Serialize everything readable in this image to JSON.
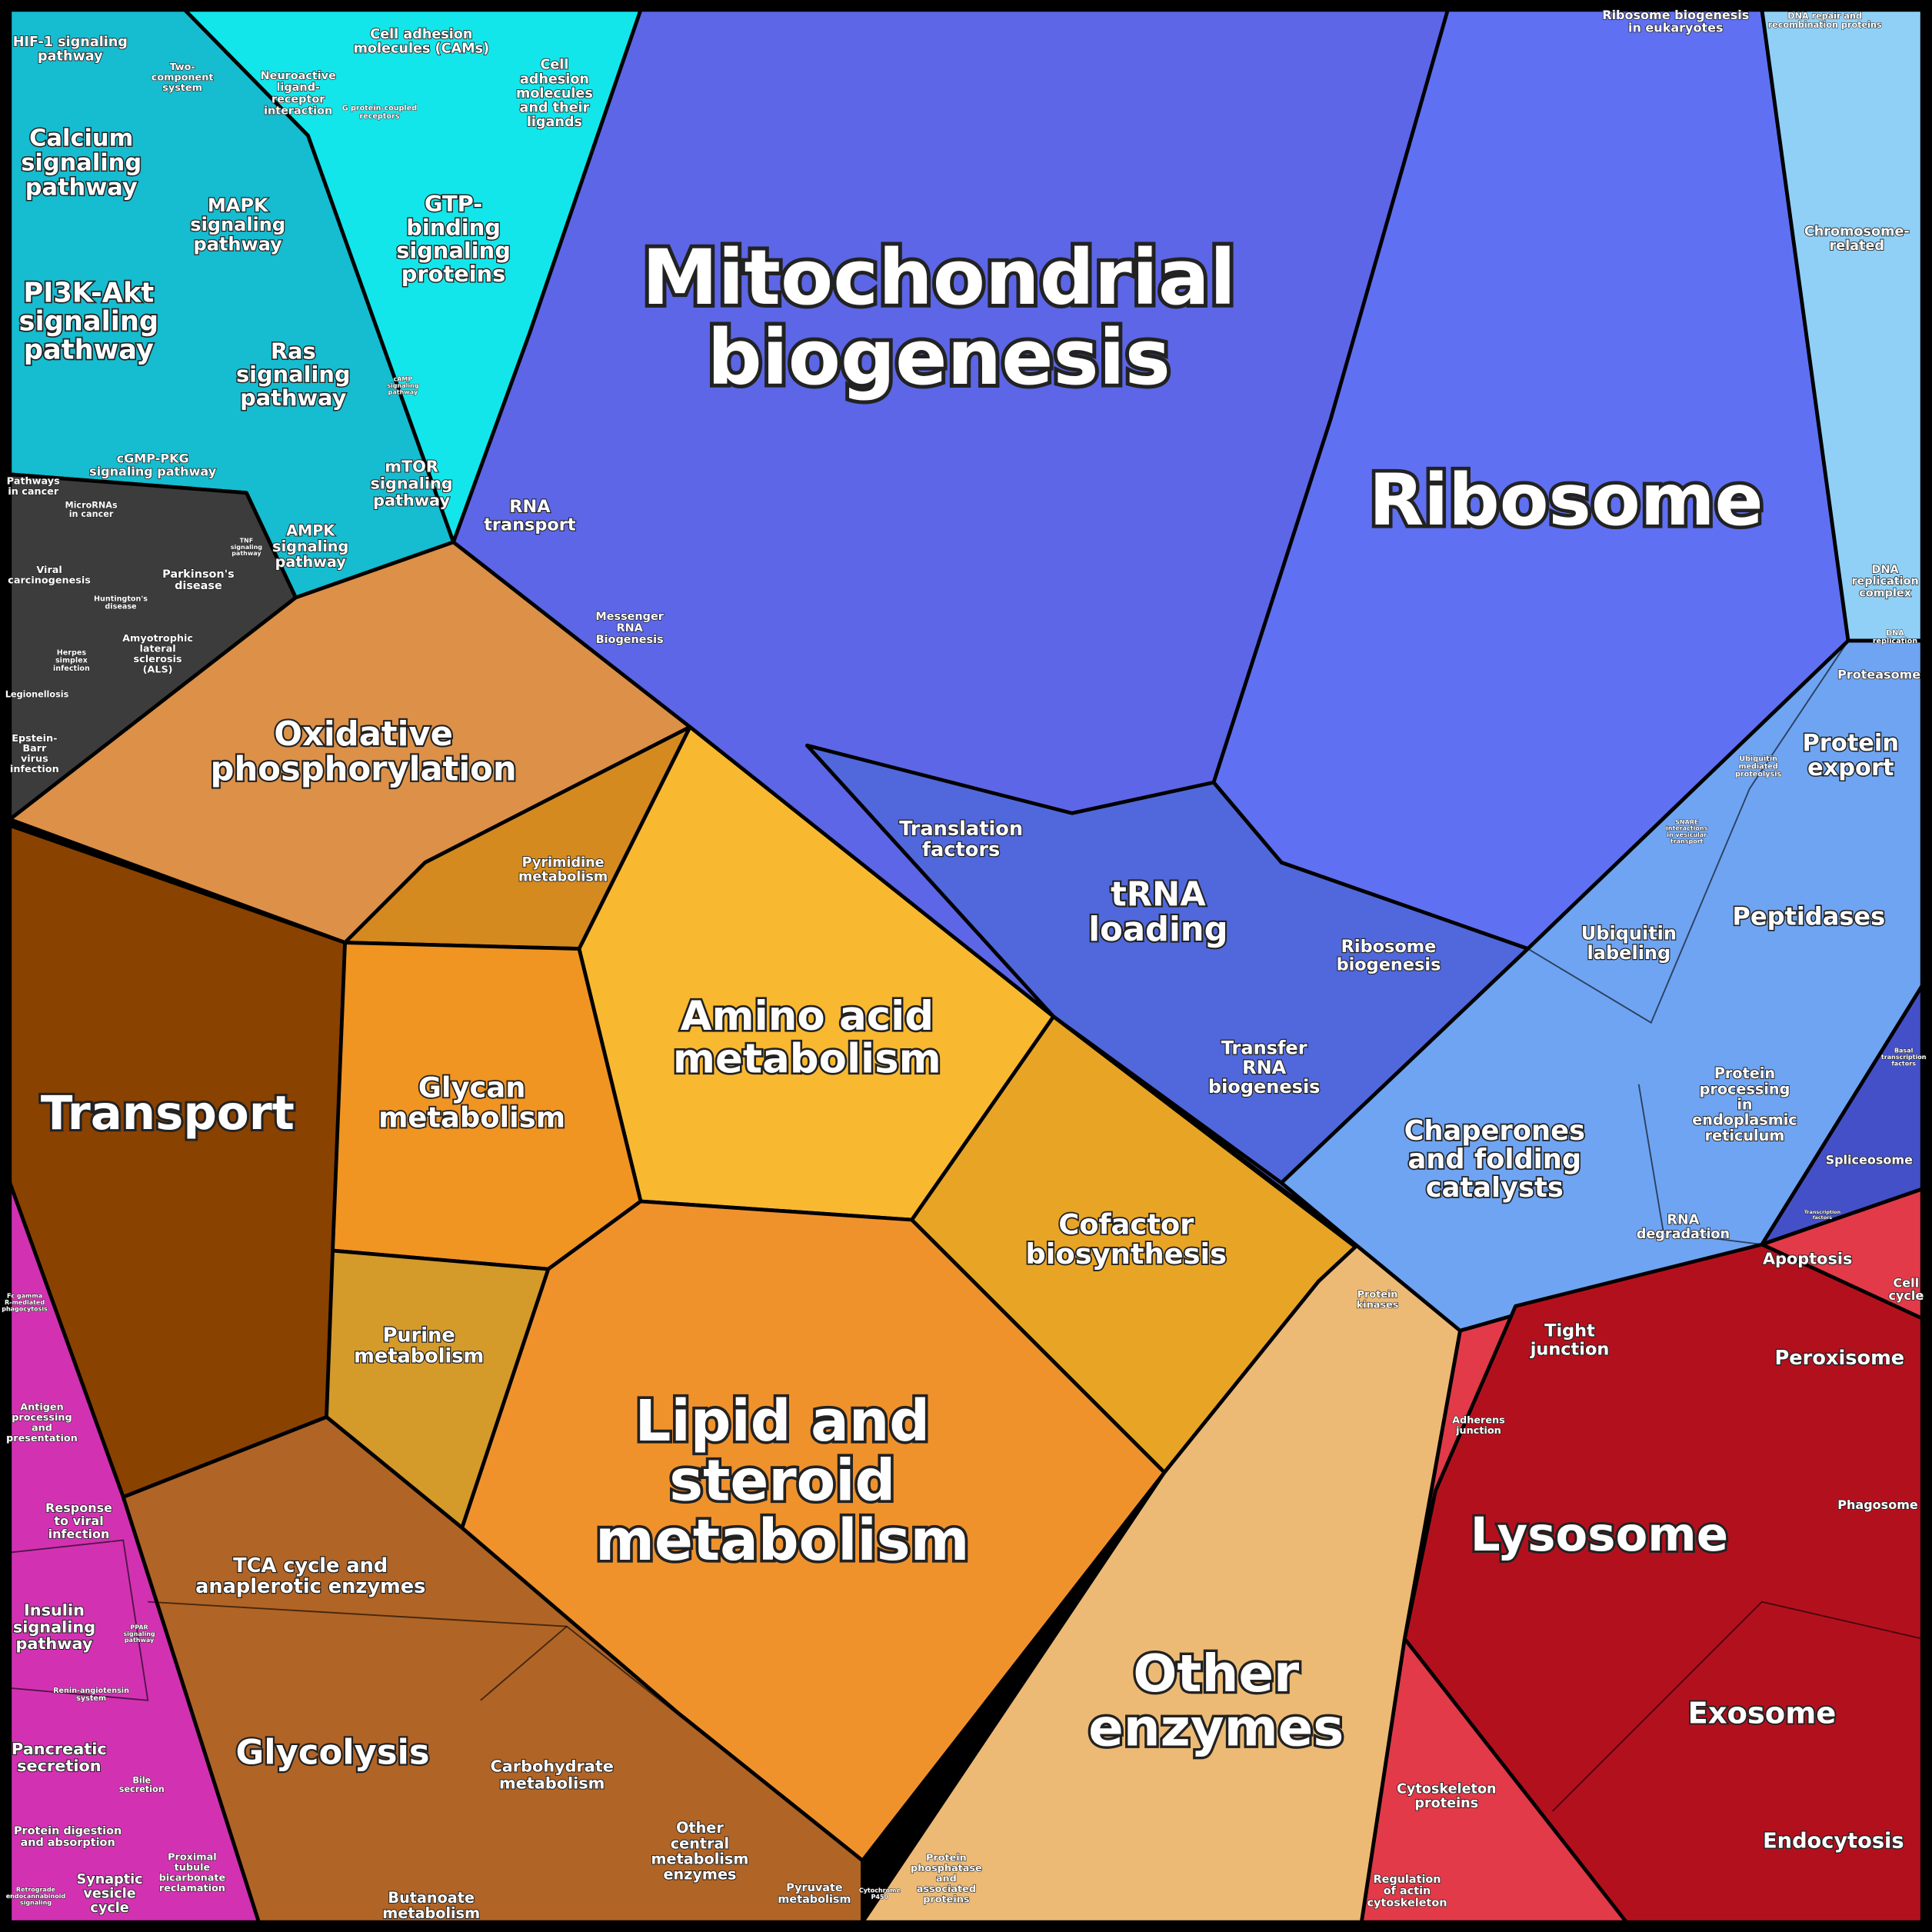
{
  "labels": [
    [
      "HIF-1 signaling",
      "pathway"
    ],
    [
      "Calcium",
      "signaling",
      "pathway"
    ],
    [
      "PI3K-Akt",
      "signaling",
      "pathway"
    ],
    [
      "MAPK",
      "signaling",
      "pathway"
    ],
    [
      "Ras",
      "signaling",
      "pathway"
    ],
    [
      "cGMP-PKG",
      "signaling pathway"
    ],
    [
      "mTOR",
      "signaling",
      "pathway"
    ],
    [
      "AMPK",
      "signaling",
      "pathway"
    ],
    [
      "GTP-",
      "binding",
      "signaling",
      "proteins"
    ],
    [
      "Cell adhesion",
      "molecules (CAMs)"
    ],
    [
      "Cell",
      "adhesion",
      "molecules",
      "and their",
      "ligands"
    ],
    [
      "Neuroactive",
      "ligand-",
      "receptor",
      "interaction"
    ],
    [
      "Two-",
      "component",
      "system"
    ],
    [
      "Pathways",
      "in cancer"
    ],
    [
      "MicroRNAs",
      "in cancer"
    ],
    [
      "Viral",
      "carcinogenesis"
    ],
    [
      "Parkinson's",
      "disease"
    ],
    [
      "Huntington's",
      "disease"
    ],
    [
      "Amyotrophic",
      "lateral",
      "sclerosis",
      "(ALS)"
    ],
    [
      "Herpes",
      "simplex",
      "infection"
    ],
    [
      "Legionellosis"
    ],
    [
      "Epstein-",
      "Barr",
      "virus",
      "infection"
    ],
    [
      "Oxidative",
      "phosphorylation"
    ],
    [
      "RNA",
      "transport"
    ],
    [
      "Messenger",
      "RNA",
      "Biogenesis"
    ],
    [
      "Mitochondrial",
      "biogenesis"
    ],
    [
      "Ribosome"
    ],
    [
      "Ribosome biogenesis",
      "in eukaryotes"
    ],
    [
      "DNA repair and",
      "recombination proteins"
    ],
    [
      "Chromosome-",
      "related"
    ],
    [
      "DNA",
      "replication",
      "complex"
    ],
    [
      "DNA",
      "replication"
    ],
    [
      "Proteasome"
    ],
    [
      "Protein",
      "export"
    ],
    [
      "Ubiquitin",
      "mediated",
      "proteolysis"
    ],
    [
      "SNARE",
      "interactions",
      "in vesicular",
      "transport"
    ],
    [
      "Peptidases"
    ],
    [
      "Ubiquitin",
      "labeling"
    ],
    [
      "Protein",
      "processing",
      "in",
      "endoplasmic",
      "reticulum"
    ],
    [
      "Chaperones",
      "and folding",
      "catalysts"
    ],
    [
      "RNA",
      "degradation"
    ],
    [
      "Spliceosome"
    ],
    [
      "Translation",
      "factors"
    ],
    [
      "tRNA",
      "loading"
    ],
    [
      "Ribosome",
      "biogenesis"
    ],
    [
      "Transfer",
      "RNA",
      "biogenesis"
    ],
    [
      "Pyrimidine",
      "metabolism"
    ],
    [
      "Amino acid",
      "metabolism"
    ],
    [
      "Glycan",
      "metabolism"
    ],
    [
      "Transport"
    ],
    [
      "Cofactor",
      "biosynthesis"
    ],
    [
      "Purine",
      "metabolism"
    ],
    [
      "Lipid and",
      "steroid",
      "metabolism"
    ],
    [
      "Protein",
      "kinases"
    ],
    [
      "Other",
      "enzymes"
    ],
    [
      "TCA cycle and",
      "anaplerotic enzymes"
    ],
    [
      "Glycolysis"
    ],
    [
      "Carbohydrate",
      "metabolism"
    ],
    [
      "Other",
      "central",
      "metabolism",
      "enzymes"
    ],
    [
      "Pyruvate",
      "metabolism"
    ],
    [
      "Butanoate",
      "metabolism"
    ],
    [
      "Protein",
      "phosphatase",
      "and",
      "associated",
      "proteins"
    ],
    [
      "Tight",
      "junction"
    ],
    [
      "Adherens",
      "junction"
    ],
    [
      "Apoptosis"
    ],
    [
      "Cell",
      "cycle"
    ],
    [
      "Peroxisome"
    ],
    [
      "Phagosome"
    ],
    [
      "Lysosome"
    ],
    [
      "Exosome"
    ],
    [
      "Endocytosis"
    ],
    [
      "Cytoskeleton",
      "proteins"
    ],
    [
      "Regulation",
      "of actin",
      "cytoskeleton"
    ],
    [
      "Antigen",
      "processing",
      "and",
      "presentation"
    ],
    [
      "Response",
      "to viral",
      "infection"
    ],
    [
      "Insulin",
      "signaling",
      "pathway"
    ],
    [
      "Pancreatic",
      "secretion"
    ],
    [
      "Protein digestion",
      "and absorption"
    ],
    [
      "Synaptic",
      "vesicle",
      "cycle"
    ],
    [
      "Proximal",
      "tubule",
      "bicarbonate",
      "reclamation"
    ],
    [
      "Bile",
      "secretion"
    ],
    [
      "Renin-angiotensin",
      "system"
    ],
    [
      "Retrograde",
      "endocannabinoid",
      "signaling"
    ],
    [
      "Fc gamma",
      "R-mediated",
      "phagocytosis"
    ],
    [
      "PPAR",
      "signaling",
      "pathway"
    ],
    [
      "TNF",
      "signaling",
      "pathway"
    ],
    [
      "cAMP",
      "signaling",
      "pathway"
    ],
    [
      "Transcription",
      "factors"
    ],
    [
      "Basal",
      "transcription",
      "factors"
    ],
    [
      "Cytochrome",
      "P450"
    ],
    [
      "G protein-coupled",
      "receptors"
    ]
  ]
}
